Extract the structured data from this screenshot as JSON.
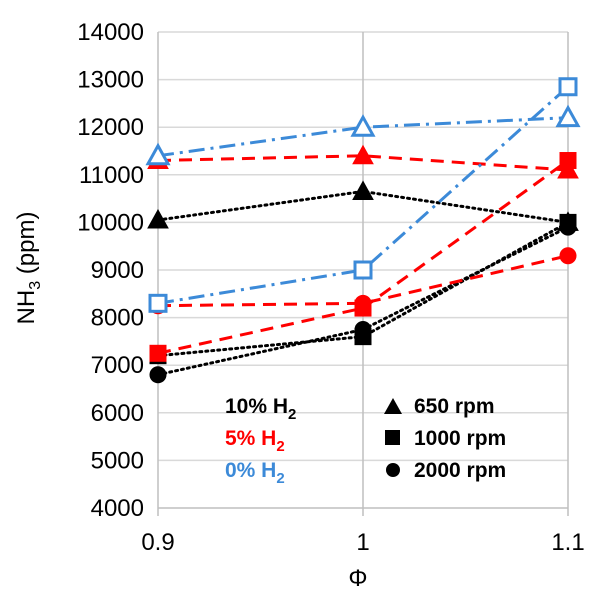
{
  "chart_data": {
    "type": "line",
    "title": "",
    "xlabel": "Φ",
    "ylabel_main": "NH",
    "ylabel_sub": "3",
    "ylabel_unit": " (ppm)",
    "x": [
      0.9,
      1,
      1.1
    ],
    "x_tick_labels": [
      "0.9",
      "1",
      "1.1"
    ],
    "xlim": [
      0.9,
      1.1
    ],
    "ylim": [
      4000,
      14000
    ],
    "y_ticks": [
      4000,
      5000,
      6000,
      7000,
      8000,
      9000,
      10000,
      11000,
      12000,
      13000,
      14000
    ],
    "grid": "horizontal",
    "colors": {
      "h10": "#000000",
      "h5": "#ff0000",
      "h0": "#3c8ad8"
    },
    "series": [
      {
        "h2": "10%",
        "rpm": "650 rpm",
        "color": "h10",
        "marker": "triangle",
        "filled": true,
        "dash": "dot",
        "values": [
          10050,
          10650,
          10000
        ]
      },
      {
        "h2": "10%",
        "rpm": "1000 rpm",
        "color": "h10",
        "marker": "square",
        "filled": true,
        "dash": "dot",
        "values": [
          7200,
          7600,
          10000
        ]
      },
      {
        "h2": "10%",
        "rpm": "2000 rpm",
        "color": "h10",
        "marker": "circle",
        "filled": true,
        "dash": "dot",
        "values": [
          6800,
          7750,
          9900
        ]
      },
      {
        "h2": "5%",
        "rpm": "650 rpm",
        "color": "h5",
        "marker": "triangle",
        "filled": true,
        "dash": "dash",
        "values": [
          11300,
          11400,
          11100
        ]
      },
      {
        "h2": "5%",
        "rpm": "1000 rpm",
        "color": "h5",
        "marker": "square",
        "filled": true,
        "dash": "dash",
        "values": [
          7250,
          8200,
          11300
        ]
      },
      {
        "h2": "5%",
        "rpm": "2000 rpm",
        "color": "h5",
        "marker": "circle",
        "filled": true,
        "dash": "dash",
        "values": [
          8250,
          8300,
          9300
        ]
      },
      {
        "h2": "0%",
        "rpm": "650 rpm",
        "color": "h0",
        "marker": "triangle",
        "filled": false,
        "dash": "dashdot",
        "values": [
          11400,
          12000,
          12200
        ]
      },
      {
        "h2": "0%",
        "rpm": "1000 rpm",
        "color": "h0",
        "marker": "square",
        "filled": false,
        "dash": "dashdot",
        "values": [
          8300,
          9000,
          12850
        ]
      }
    ],
    "legend_h2": [
      {
        "label": "10% H",
        "sub": "2",
        "color": "h10"
      },
      {
        "label": "5% H",
        "sub": "2",
        "color": "h5"
      },
      {
        "label": "0% H",
        "sub": "2",
        "color": "h0"
      }
    ],
    "legend_rpm": [
      {
        "label": "650 rpm",
        "marker": "triangle"
      },
      {
        "label": "1000 rpm",
        "marker": "square"
      },
      {
        "label": "2000 rpm",
        "marker": "circle"
      }
    ]
  }
}
